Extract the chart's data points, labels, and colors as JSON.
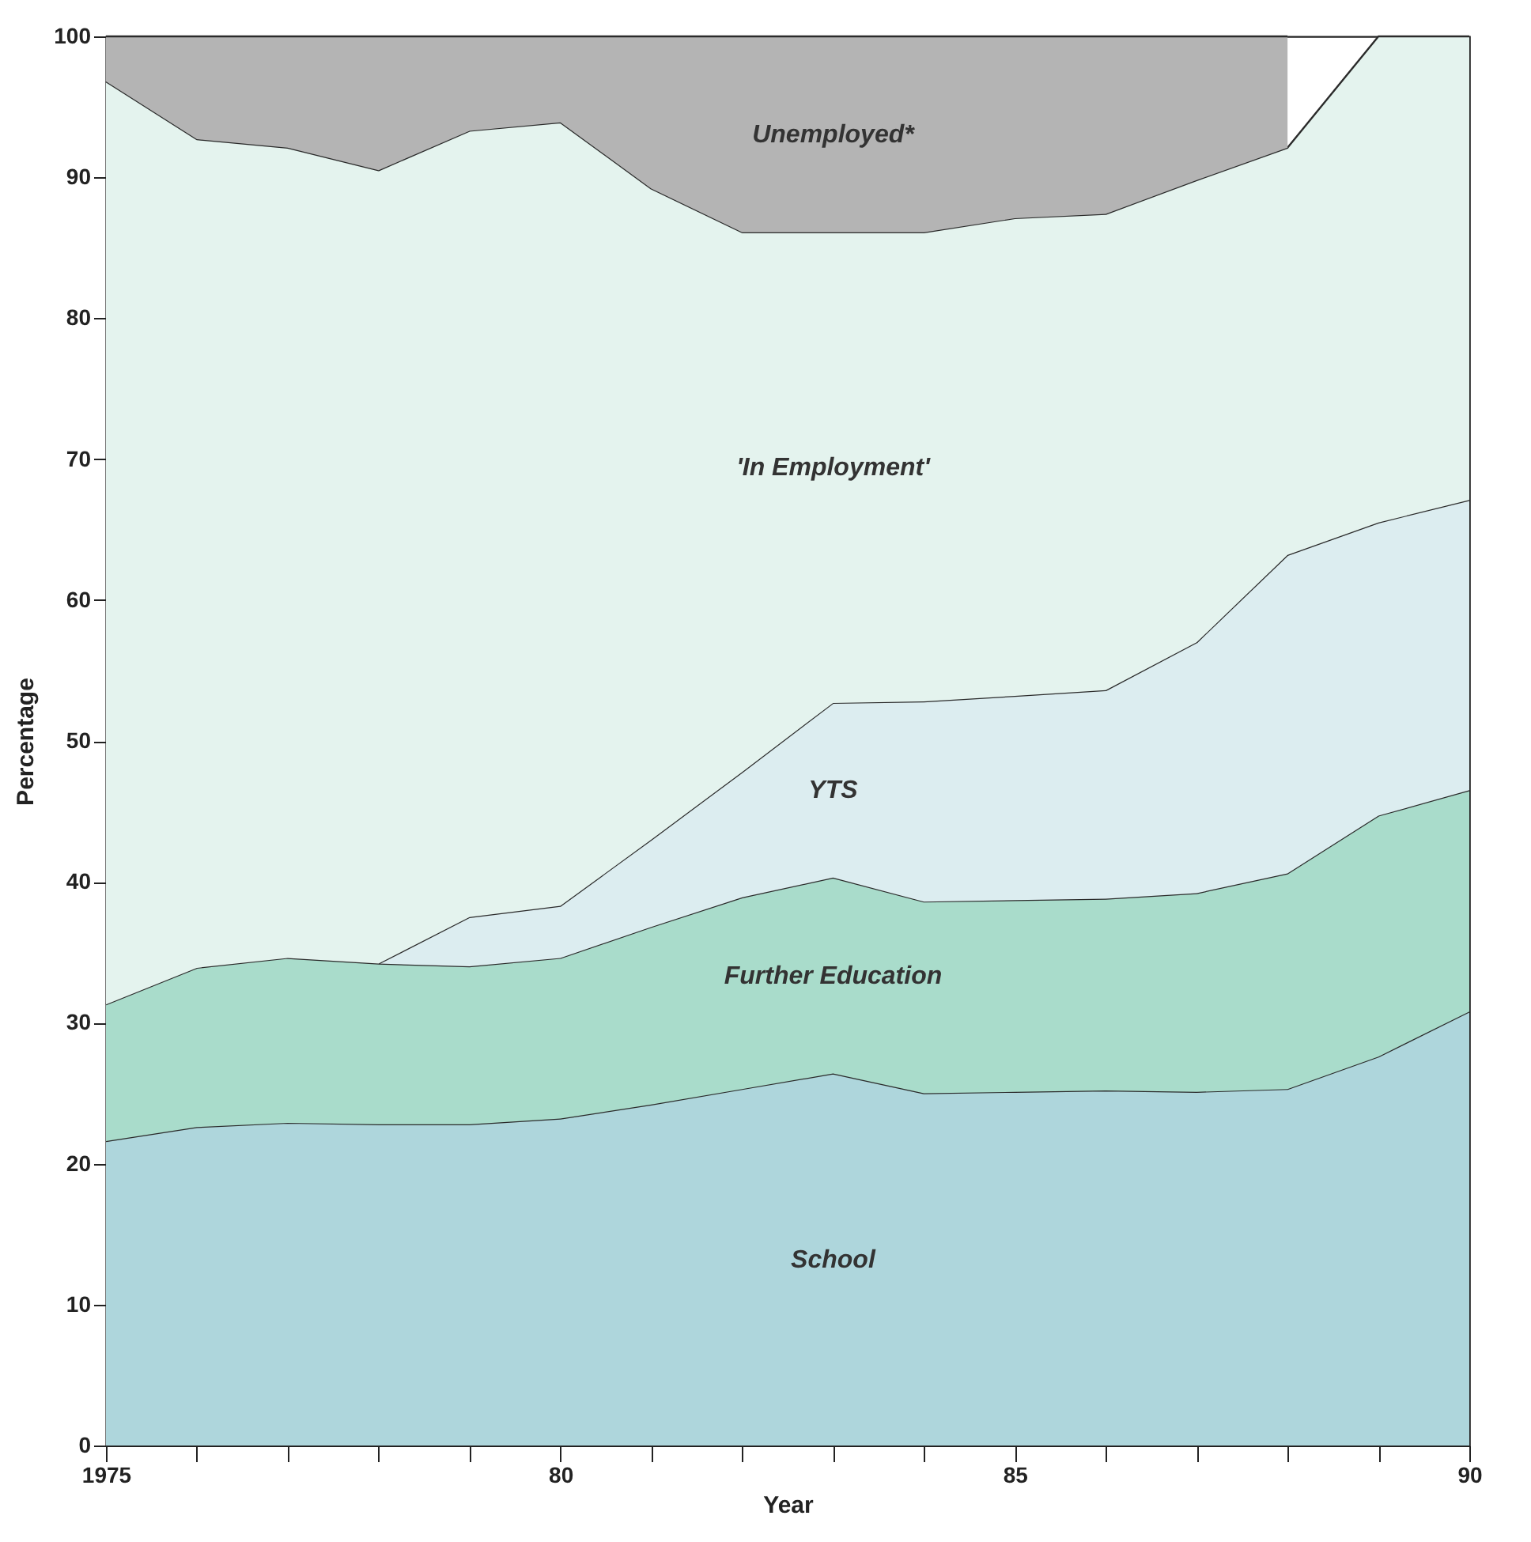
{
  "chart_data": {
    "type": "area",
    "stacked": true,
    "xlabel": "Year",
    "ylabel": "Percentage",
    "x": [
      1975,
      1976,
      1977,
      1978,
      1979,
      1980,
      1981,
      1982,
      1983,
      1984,
      1985,
      1986,
      1987,
      1988,
      1989,
      1990
    ],
    "series": [
      {
        "name": "School",
        "color": "#aed6dc",
        "values": [
          21.6,
          22.6,
          22.9,
          22.8,
          22.8,
          23.2,
          24.2,
          25.3,
          26.4,
          25.0,
          25.1,
          25.2,
          25.1,
          25.3,
          27.6,
          30.8
        ]
      },
      {
        "name": "Further Education",
        "color": "#a9dccb",
        "values": [
          9.7,
          11.3,
          11.7,
          11.4,
          11.2,
          11.4,
          12.6,
          13.6,
          13.9,
          13.6,
          13.6,
          13.6,
          14.1,
          15.3,
          17.1,
          15.7
        ]
      },
      {
        "name": "YTS",
        "color": "#dcedf0",
        "values": [
          null,
          null,
          null,
          0,
          3.5,
          3.7,
          6.2,
          8.9,
          12.4,
          14.2,
          14.5,
          14.8,
          17.8,
          22.6,
          20.8,
          20.6
        ]
      },
      {
        "name": "'In Employment'",
        "color": "#e4f3ee",
        "values": [
          65.5,
          58.8,
          57.5,
          56.3,
          55.8,
          55.6,
          46.2,
          38.3,
          33.4,
          33.3,
          33.9,
          33.8,
          32.8,
          28.9,
          34.5,
          32.9
        ]
      },
      {
        "name": "Unemployed*",
        "color": "#b4b4b4",
        "values": [
          3.2,
          7.3,
          7.9,
          9.5,
          6.7,
          6.1,
          10.8,
          13.9,
          13.9,
          13.9,
          12.9,
          12.6,
          10.2,
          7.9,
          null,
          null
        ]
      }
    ],
    "xlim": [
      1975,
      1990
    ],
    "xticks": [
      1975,
      {
        "value": 1976,
        "label": null
      },
      {
        "value": 1977,
        "label": null
      },
      {
        "value": 1978,
        "label": null
      },
      {
        "value": 1979,
        "label": null
      },
      {
        "value": 1980,
        "label": "80"
      },
      {
        "value": 1981,
        "label": null
      },
      {
        "value": 1982,
        "label": null
      },
      {
        "value": 1983,
        "label": null
      },
      {
        "value": 1984,
        "label": null
      },
      {
        "value": 1985,
        "label": "85"
      },
      {
        "value": 1986,
        "label": null
      },
      {
        "value": 1987,
        "label": null
      },
      {
        "value": 1988,
        "label": null
      },
      {
        "value": 1989,
        "label": null
      },
      {
        "value": 1990,
        "label": "90"
      }
    ],
    "ylim": [
      0,
      100
    ],
    "yticks": [
      0,
      10,
      20,
      30,
      40,
      50,
      60,
      70,
      80,
      90,
      100
    ],
    "grid": false
  }
}
